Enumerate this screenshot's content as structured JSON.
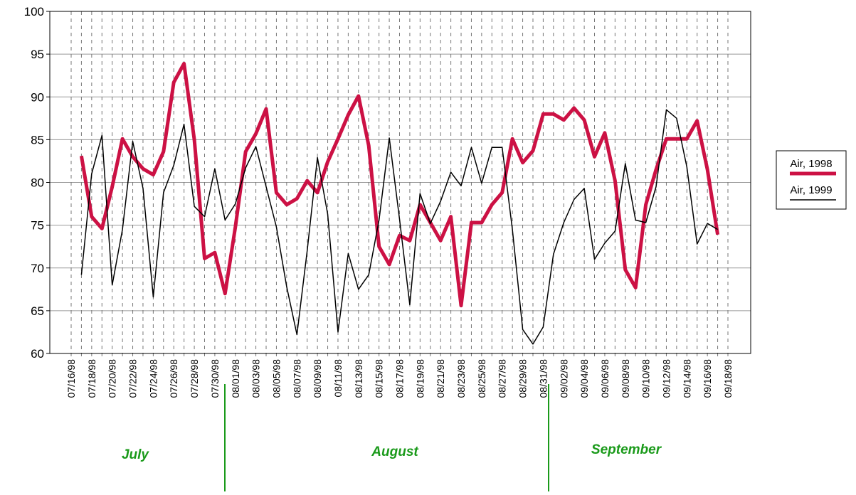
{
  "chart_data": {
    "type": "line",
    "categories": [
      "07/16/98",
      null,
      "07/18/98",
      null,
      "07/20/98",
      null,
      "07/22/98",
      null,
      "07/24/98",
      null,
      "07/26/98",
      null,
      "07/28/98",
      null,
      "07/30/98",
      null,
      "08/01/98",
      null,
      "08/03/98",
      null,
      "08/05/98",
      null,
      "08/07/98",
      null,
      "08/09/98",
      null,
      "08/11/98",
      null,
      "08/13/98",
      null,
      "08/15/98",
      null,
      "08/17/98",
      null,
      "08/19/98",
      null,
      "08/21/98",
      null,
      "08/23/98",
      null,
      "08/25/98",
      null,
      "08/27/98",
      null,
      "08/29/98",
      null,
      "08/31/98",
      null,
      "09/02/98",
      null,
      "09/04/98",
      null,
      "09/06/98",
      null,
      "09/08/98",
      null,
      "09/10/98",
      null,
      "09/12/98",
      null,
      "09/14/98",
      null,
      "09/16/98",
      null,
      "09/18/98"
    ],
    "series": [
      {
        "name": "Air, 1998",
        "color": "#cc1144",
        "values": [
          null,
          83.1,
          76.0,
          74.6,
          79.5,
          85.1,
          83.0,
          81.6,
          80.9,
          83.6,
          91.7,
          93.9,
          85.0,
          71.1,
          71.8,
          67.0,
          74.8,
          83.6,
          85.7,
          88.6,
          78.8,
          77.4,
          78.1,
          80.2,
          78.8,
          82.4,
          85.1,
          87.9,
          90.1,
          84.3,
          72.5,
          70.4,
          73.8,
          73.2,
          77.4,
          75.3,
          73.2,
          76.0,
          65.6,
          75.3,
          75.3,
          77.4,
          78.8,
          85.1,
          82.3,
          83.7,
          88.0,
          88.0,
          87.3,
          88.7,
          87.3,
          83.0,
          85.8,
          80.2,
          69.8,
          67.7,
          77.4,
          81.5,
          85.1,
          85.1,
          85.1,
          87.2,
          81.5,
          73.9,
          null
        ]
      },
      {
        "name": "Air, 1999",
        "color": "#000000",
        "values": [
          null,
          69.2,
          81.0,
          85.5,
          68.0,
          74.5,
          84.8,
          79.3,
          66.6,
          78.8,
          82.0,
          86.8,
          77.2,
          76.0,
          81.6,
          75.6,
          77.5,
          81.7,
          84.2,
          79.5,
          74.8,
          67.8,
          62.2,
          72.0,
          82.9,
          76.3,
          62.5,
          71.7,
          67.5,
          69.2,
          75.6,
          85.2,
          75.7,
          65.7,
          78.7,
          75.2,
          77.8,
          81.2,
          79.6,
          84.1,
          79.9,
          84.1,
          84.1,
          74.5,
          62.8,
          61.1,
          63.1,
          71.6,
          75.3,
          78.0,
          79.3,
          71.0,
          72.9,
          74.3,
          82.2,
          75.6,
          75.3,
          79.5,
          88.5,
          87.5,
          81.8,
          72.8,
          75.2,
          74.5,
          null
        ]
      }
    ],
    "ylim": [
      60,
      100
    ],
    "yticks": [
      60,
      65,
      70,
      75,
      80,
      85,
      90,
      95,
      100
    ],
    "grid": true,
    "legend": "right",
    "annotations": [
      "July",
      "August",
      "September"
    ]
  }
}
